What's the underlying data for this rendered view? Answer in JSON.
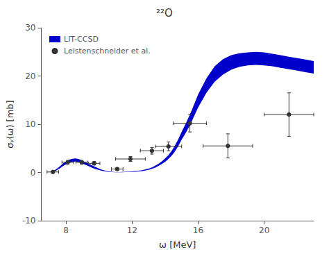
{
  "chart_data": {
    "type": "scatter",
    "title": "²²O",
    "xlabel": "ω [MeV]",
    "ylabel": "σᵧ(ω) [mb]",
    "xlim": [
      6.5,
      23
    ],
    "ylim": [
      -10,
      30
    ],
    "xticks": [
      8,
      12,
      16,
      20
    ],
    "yticks": [
      -10,
      0,
      10,
      20,
      30
    ],
    "grid": false,
    "legend": "upper left",
    "series": [
      {
        "name": "LIT-CCSD",
        "type": "band",
        "color": "#0000cc",
        "x": [
          6.5,
          6.8,
          7.0,
          7.2,
          7.4,
          7.6,
          7.8,
          8.0,
          8.2,
          8.4,
          8.6,
          8.8,
          9.0,
          9.2,
          9.4,
          9.6,
          9.8,
          10.0,
          10.2,
          10.4,
          10.6,
          10.8,
          11.0,
          11.2,
          11.4,
          11.6,
          11.8,
          12.0,
          12.2,
          12.4,
          12.6,
          12.8,
          13.0,
          13.2,
          13.4,
          13.6,
          13.8,
          14.0,
          14.2,
          14.4,
          14.6,
          14.8,
          15.0,
          15.3,
          15.6,
          16.0,
          16.5,
          17.0,
          17.5,
          18.0,
          18.5,
          19.0,
          19.5,
          20.0,
          20.5,
          21.0,
          21.5,
          22.0,
          22.5,
          23.0
        ],
        "lower": [
          0.0,
          0.02,
          0.06,
          0.15,
          0.4,
          0.8,
          1.3,
          1.7,
          2.0,
          2.2,
          2.25,
          2.1,
          1.85,
          1.55,
          1.25,
          0.95,
          0.7,
          0.5,
          0.32,
          0.2,
          0.12,
          0.07,
          0.03,
          0.02,
          0.04,
          0.07,
          0.1,
          0.12,
          0.15,
          0.2,
          0.28,
          0.4,
          0.55,
          0.75,
          1.0,
          1.35,
          1.75,
          2.2,
          2.8,
          3.5,
          4.4,
          5.5,
          6.8,
          8.5,
          10.5,
          13.5,
          16.5,
          18.8,
          20.3,
          21.3,
          21.9,
          22.2,
          22.3,
          22.2,
          22.0,
          21.7,
          21.4,
          21.1,
          20.8,
          20.5
        ],
        "upper": [
          0.0,
          0.04,
          0.12,
          0.3,
          0.7,
          1.2,
          1.8,
          2.3,
          2.65,
          2.85,
          2.9,
          2.75,
          2.45,
          2.1,
          1.75,
          1.4,
          1.1,
          0.8,
          0.55,
          0.35,
          0.22,
          0.13,
          0.08,
          0.06,
          0.09,
          0.13,
          0.18,
          0.23,
          0.28,
          0.35,
          0.45,
          0.6,
          0.8,
          1.05,
          1.4,
          1.8,
          2.3,
          2.9,
          3.6,
          4.5,
          5.6,
          6.9,
          8.4,
          10.5,
          12.8,
          16.2,
          19.5,
          22.0,
          23.5,
          24.3,
          24.7,
          24.9,
          25.0,
          24.9,
          24.6,
          24.3,
          24.0,
          23.7,
          23.4,
          23.1
        ]
      },
      {
        "name": "Leistenschneider et al.",
        "type": "scatter",
        "marker": "circle",
        "color": "#333333",
        "x": [
          7.2,
          8.1,
          8.95,
          9.7,
          11.1,
          11.9,
          13.2,
          14.2,
          15.5,
          17.8,
          21.5
        ],
        "values": [
          0.1,
          2.1,
          2.1,
          1.9,
          0.7,
          2.8,
          4.5,
          5.4,
          10.2,
          5.5,
          12.0
        ],
        "xerr": [
          0.35,
          0.35,
          0.35,
          0.35,
          0.35,
          0.9,
          0.7,
          0.8,
          1.0,
          1.5,
          1.5
        ],
        "yerr": [
          0.2,
          0.4,
          0.4,
          0.35,
          0.25,
          0.5,
          0.7,
          0.9,
          1.8,
          2.5,
          4.5
        ]
      }
    ]
  }
}
